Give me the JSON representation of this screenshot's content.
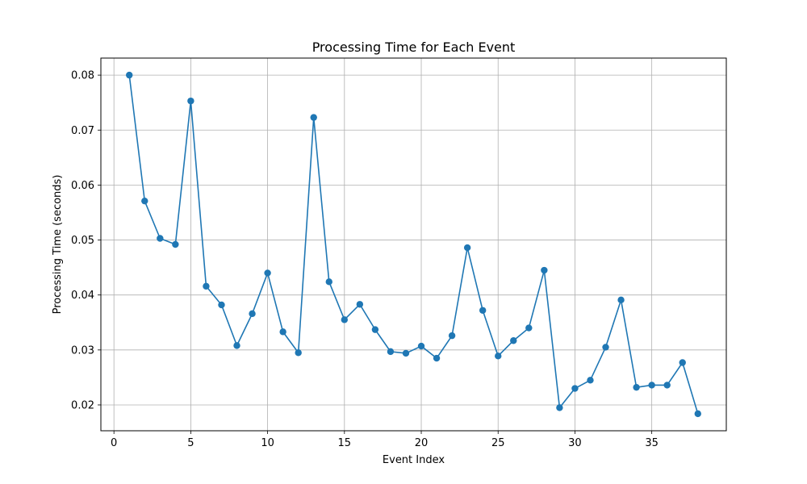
{
  "chart_data": {
    "type": "line",
    "title": "Processing Time for Each Event",
    "xlabel": "Event Index",
    "ylabel": "Processing Time (seconds)",
    "xlim": [
      -0.85,
      39.85
    ],
    "ylim": [
      0.0153,
      0.0831
    ],
    "xticks": [
      0,
      5,
      10,
      15,
      20,
      25,
      30,
      35
    ],
    "yticks": [
      0.02,
      0.03,
      0.04,
      0.05,
      0.06,
      0.07,
      0.08
    ],
    "grid": true,
    "marker": "circle",
    "color": "#1f77b4",
    "x": [
      1,
      2,
      3,
      4,
      5,
      6,
      7,
      8,
      9,
      10,
      11,
      12,
      13,
      14,
      15,
      16,
      17,
      18,
      19,
      20,
      21,
      22,
      23,
      24,
      25,
      26,
      27,
      28,
      29,
      30,
      31,
      32,
      33,
      34,
      35,
      36,
      37,
      38
    ],
    "y": [
      0.08,
      0.0571,
      0.0503,
      0.0492,
      0.0753,
      0.0416,
      0.0382,
      0.0308,
      0.0366,
      0.044,
      0.0333,
      0.0295,
      0.0723,
      0.0424,
      0.0355,
      0.0383,
      0.0337,
      0.0297,
      0.0294,
      0.0307,
      0.0285,
      0.0326,
      0.0486,
      0.0372,
      0.0289,
      0.0317,
      0.034,
      0.0445,
      0.0195,
      0.023,
      0.0245,
      0.0305,
      0.0391,
      0.0232,
      0.0236,
      0.0236,
      0.0277,
      0.0184
    ]
  }
}
